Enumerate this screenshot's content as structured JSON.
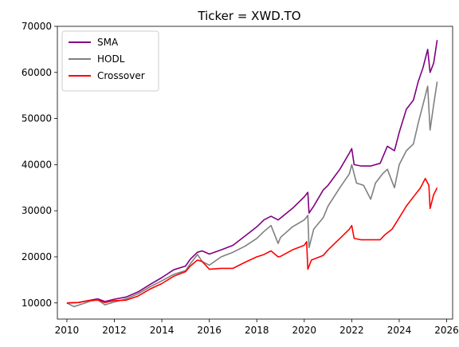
{
  "chart_data": {
    "type": "line",
    "title": "Ticker = XWD.TO",
    "xlabel": "",
    "ylabel": "",
    "xlim": [
      2009.6,
      2026.25
    ],
    "ylim": [
      6500,
      70000
    ],
    "xticks": [
      2010,
      2012,
      2014,
      2016,
      2018,
      2020,
      2022,
      2024,
      2026
    ],
    "yticks": [
      10000,
      20000,
      30000,
      40000,
      50000,
      60000,
      70000
    ],
    "grid": false,
    "legend": "top-left",
    "series": [
      {
        "name": "SMA",
        "color": "#800080",
        "points": [
          [
            2010.0,
            10000
          ],
          [
            2010.5,
            10100
          ],
          [
            2011.0,
            10600
          ],
          [
            2011.3,
            10900
          ],
          [
            2011.6,
            10300
          ],
          [
            2012.0,
            10800
          ],
          [
            2012.5,
            11300
          ],
          [
            2013.0,
            12400
          ],
          [
            2013.5,
            14000
          ],
          [
            2014.0,
            15500
          ],
          [
            2014.5,
            17200
          ],
          [
            2015.0,
            18000
          ],
          [
            2015.2,
            19500
          ],
          [
            2015.5,
            21000
          ],
          [
            2015.7,
            21300
          ],
          [
            2016.0,
            20600
          ],
          [
            2016.5,
            21500
          ],
          [
            2017.0,
            22500
          ],
          [
            2017.5,
            24500
          ],
          [
            2018.0,
            26500
          ],
          [
            2018.3,
            28000
          ],
          [
            2018.6,
            28800
          ],
          [
            2018.9,
            28000
          ],
          [
            2019.0,
            28400
          ],
          [
            2019.5,
            30500
          ],
          [
            2020.0,
            33000
          ],
          [
            2020.15,
            34000
          ],
          [
            2020.2,
            29500
          ],
          [
            2020.4,
            31000
          ],
          [
            2020.8,
            34500
          ],
          [
            2021.0,
            35500
          ],
          [
            2021.5,
            39000
          ],
          [
            2021.9,
            42500
          ],
          [
            2022.0,
            43500
          ],
          [
            2022.1,
            40000
          ],
          [
            2022.4,
            39700
          ],
          [
            2022.8,
            39700
          ],
          [
            2023.2,
            40300
          ],
          [
            2023.5,
            44000
          ],
          [
            2023.8,
            43000
          ],
          [
            2024.0,
            47000
          ],
          [
            2024.3,
            52000
          ],
          [
            2024.6,
            54000
          ],
          [
            2024.8,
            58000
          ],
          [
            2025.0,
            61000
          ],
          [
            2025.2,
            65000
          ],
          [
            2025.3,
            60000
          ],
          [
            2025.45,
            62000
          ],
          [
            2025.6,
            67000
          ]
        ]
      },
      {
        "name": "HODL",
        "color": "#808080",
        "points": [
          [
            2010.0,
            10000
          ],
          [
            2010.3,
            9200
          ],
          [
            2010.6,
            9700
          ],
          [
            2011.0,
            10400
          ],
          [
            2011.3,
            10700
          ],
          [
            2011.6,
            9600
          ],
          [
            2012.0,
            10200
          ],
          [
            2012.5,
            10900
          ],
          [
            2013.0,
            12000
          ],
          [
            2013.5,
            13500
          ],
          [
            2014.0,
            14800
          ],
          [
            2014.5,
            16200
          ],
          [
            2015.0,
            17000
          ],
          [
            2015.2,
            18500
          ],
          [
            2015.5,
            20500
          ],
          [
            2015.7,
            19000
          ],
          [
            2016.0,
            18200
          ],
          [
            2016.5,
            20000
          ],
          [
            2017.0,
            21000
          ],
          [
            2017.5,
            22300
          ],
          [
            2018.0,
            24000
          ],
          [
            2018.3,
            25500
          ],
          [
            2018.6,
            26800
          ],
          [
            2018.9,
            22900
          ],
          [
            2019.0,
            24200
          ],
          [
            2019.5,
            26500
          ],
          [
            2020.0,
            28000
          ],
          [
            2020.15,
            29000
          ],
          [
            2020.2,
            22000
          ],
          [
            2020.4,
            26000
          ],
          [
            2020.8,
            28500
          ],
          [
            2021.0,
            31000
          ],
          [
            2021.5,
            35000
          ],
          [
            2021.9,
            38000
          ],
          [
            2022.0,
            40000
          ],
          [
            2022.2,
            36000
          ],
          [
            2022.5,
            35500
          ],
          [
            2022.8,
            32500
          ],
          [
            2023.0,
            36000
          ],
          [
            2023.3,
            38000
          ],
          [
            2023.5,
            39000
          ],
          [
            2023.8,
            35000
          ],
          [
            2024.0,
            40000
          ],
          [
            2024.3,
            43000
          ],
          [
            2024.6,
            44500
          ],
          [
            2024.8,
            49000
          ],
          [
            2025.0,
            53000
          ],
          [
            2025.2,
            57000
          ],
          [
            2025.3,
            47500
          ],
          [
            2025.45,
            53000
          ],
          [
            2025.6,
            58000
          ]
        ]
      },
      {
        "name": "Crossover",
        "color": "#ff0000",
        "points": [
          [
            2010.0,
            10000
          ],
          [
            2010.5,
            10100
          ],
          [
            2011.0,
            10600
          ],
          [
            2011.3,
            10600
          ],
          [
            2011.6,
            10100
          ],
          [
            2012.0,
            10500
          ],
          [
            2012.5,
            10600
          ],
          [
            2013.0,
            11500
          ],
          [
            2013.5,
            13000
          ],
          [
            2014.0,
            14200
          ],
          [
            2014.5,
            15800
          ],
          [
            2015.0,
            16800
          ],
          [
            2015.2,
            18000
          ],
          [
            2015.5,
            19300
          ],
          [
            2015.7,
            19000
          ],
          [
            2016.0,
            17300
          ],
          [
            2016.5,
            17500
          ],
          [
            2017.0,
            17500
          ],
          [
            2017.5,
            18800
          ],
          [
            2018.0,
            20000
          ],
          [
            2018.3,
            20500
          ],
          [
            2018.6,
            21300
          ],
          [
            2018.9,
            20000
          ],
          [
            2019.0,
            20100
          ],
          [
            2019.5,
            21500
          ],
          [
            2020.0,
            22500
          ],
          [
            2020.1,
            23300
          ],
          [
            2020.15,
            17300
          ],
          [
            2020.3,
            19300
          ],
          [
            2020.8,
            20300
          ],
          [
            2021.0,
            21500
          ],
          [
            2021.5,
            24000
          ],
          [
            2021.9,
            26000
          ],
          [
            2022.0,
            26800
          ],
          [
            2022.1,
            24000
          ],
          [
            2022.4,
            23700
          ],
          [
            2022.8,
            23700
          ],
          [
            2023.2,
            23700
          ],
          [
            2023.4,
            24800
          ],
          [
            2023.7,
            26000
          ],
          [
            2024.0,
            28500
          ],
          [
            2024.3,
            31000
          ],
          [
            2024.6,
            33000
          ],
          [
            2024.9,
            35000
          ],
          [
            2025.1,
            37000
          ],
          [
            2025.25,
            35500
          ],
          [
            2025.3,
            30500
          ],
          [
            2025.45,
            33500
          ],
          [
            2025.6,
            35000
          ]
        ]
      }
    ]
  }
}
